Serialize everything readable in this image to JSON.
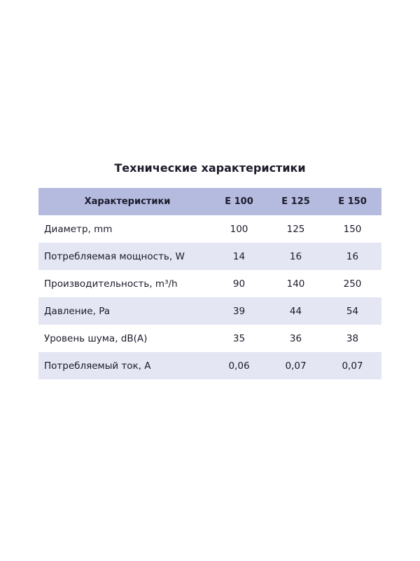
{
  "header": {
    "title": "Технические характеристики"
  },
  "table": {
    "columns": [
      "Характеристики",
      "E 100",
      "E 125",
      "E 150"
    ],
    "rows": [
      [
        "Диаметр, mm",
        "100",
        "125",
        "150"
      ],
      [
        "Потребляемая мощность, W",
        "14",
        "16",
        "16"
      ],
      [
        "Производительность, m³/h",
        "90",
        "140",
        "250"
      ],
      [
        "Давление, Pa",
        "39",
        "44",
        "54"
      ],
      [
        "Уровень шума, dB(A)",
        "35",
        "36",
        "38"
      ],
      [
        "Потребляемый ток, А",
        "0,06",
        "0,07",
        "0,07"
      ]
    ]
  }
}
